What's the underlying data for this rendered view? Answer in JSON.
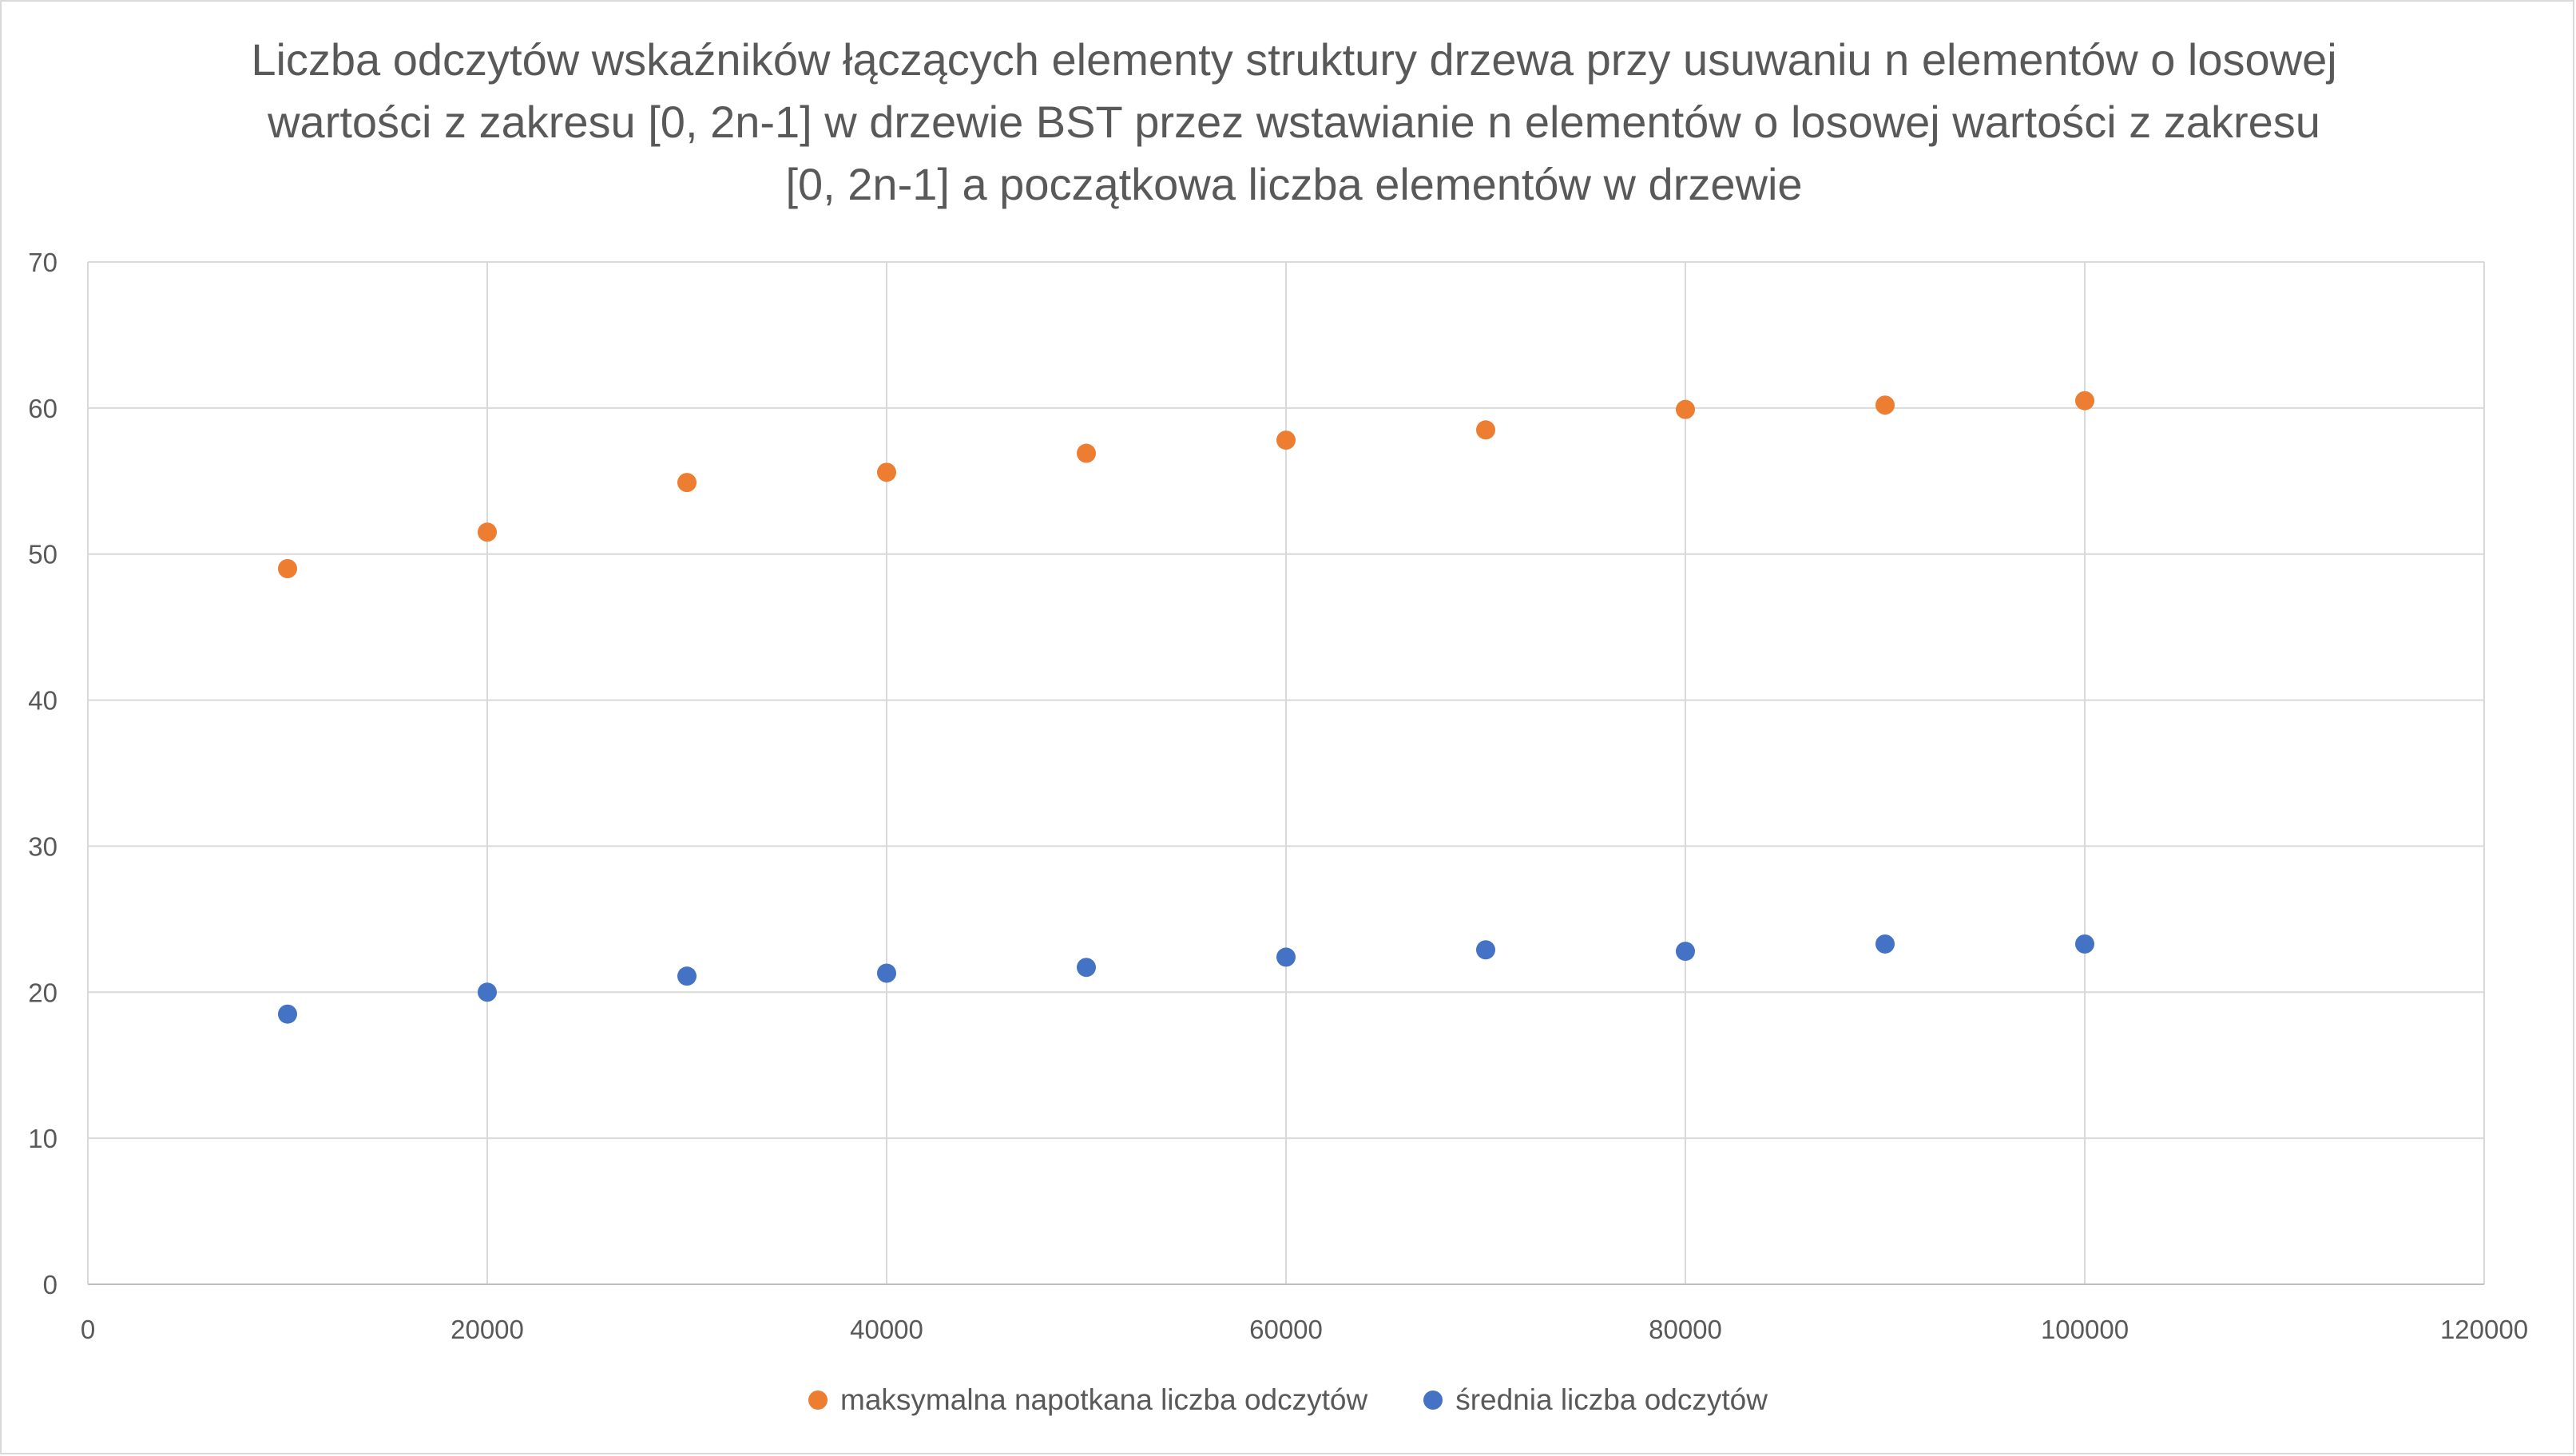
{
  "chart_data": {
    "type": "scatter",
    "title": "Liczba odczytów wskaźników łączących elementy struktury drzewa przy usuwaniu n elementów o losowej wartości z zakresu [0, 2n-1] w drzewie BST przez wstawianie n elementów o losowej wartości z zakresu [0, 2n-1] a początkowa liczba elementów w drzewie",
    "xlabel": "",
    "ylabel": "",
    "xlim": [
      0,
      120000
    ],
    "ylim": [
      0,
      70
    ],
    "x_ticks": [
      "0",
      "20000",
      "40000",
      "60000",
      "80000",
      "100000",
      "120000"
    ],
    "y_ticks": [
      "0",
      "10",
      "20",
      "30",
      "40",
      "50",
      "60",
      "70"
    ],
    "grid": true,
    "legend_position": "bottom",
    "series": [
      {
        "name": "maksymalna napotkana liczba odczytów",
        "color": "#ed7d31",
        "x": [
          10000,
          20000,
          30000,
          40000,
          50000,
          60000,
          70000,
          80000,
          90000,
          100000
        ],
        "y": [
          49,
          51.5,
          54.9,
          55.6,
          56.9,
          57.8,
          58.5,
          59.9,
          60.2,
          60.5
        ]
      },
      {
        "name": "średnia liczba odczytów",
        "color": "#4472c4",
        "x": [
          10000,
          20000,
          30000,
          40000,
          50000,
          60000,
          70000,
          80000,
          90000,
          100000
        ],
        "y": [
          18.5,
          20,
          21.1,
          21.3,
          21.7,
          22.4,
          22.9,
          22.8,
          23.3,
          23.3
        ]
      }
    ]
  }
}
